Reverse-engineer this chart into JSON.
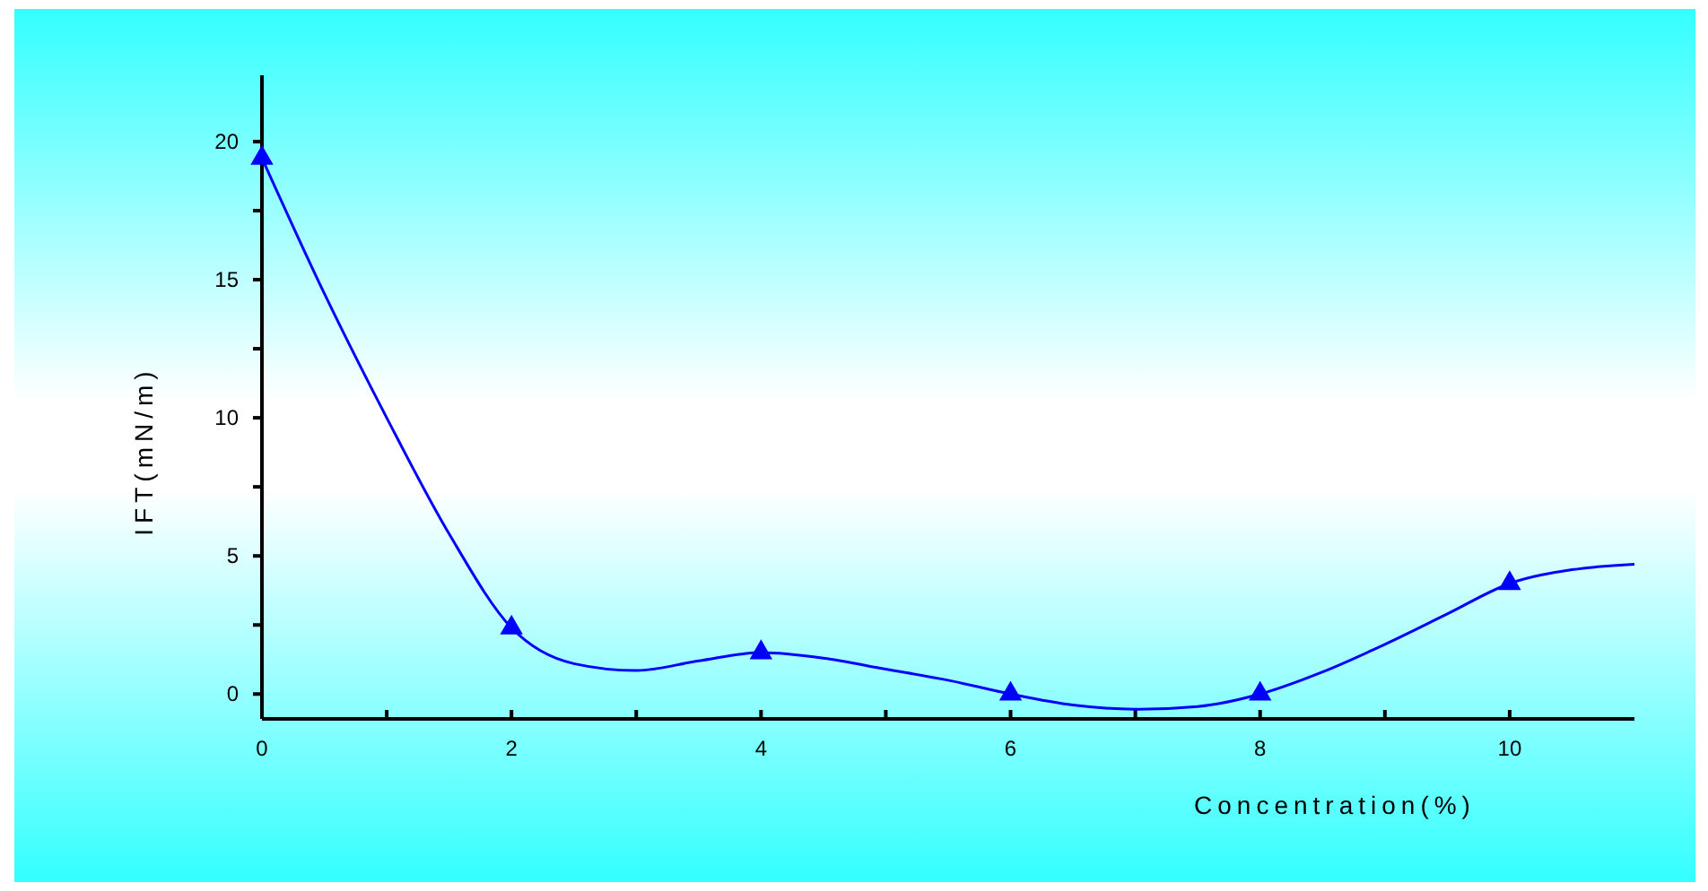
{
  "chart_data": {
    "type": "line",
    "xlabel": "Concentration(%)",
    "ylabel": "IFT(mN/m)",
    "xlim": [
      0,
      11
    ],
    "ylim": [
      -0.9,
      22.4
    ],
    "xticks": [
      0,
      {
        "value": 1,
        "label": null
      },
      2,
      {
        "value": 3,
        "label": null
      },
      4,
      {
        "value": 5,
        "label": null
      },
      6,
      {
        "value": 7,
        "label": null
      },
      8,
      {
        "value": 9,
        "label": null
      },
      10
    ],
    "yticks": [
      0,
      {
        "value": 2.5,
        "label": null
      },
      5,
      {
        "value": 7.5,
        "label": null
      },
      10,
      {
        "value": 12.5,
        "label": null
      },
      15,
      {
        "value": 17.5,
        "label": null
      },
      20
    ],
    "grid": false,
    "series": [
      {
        "color": "#0000ff",
        "marker": "none",
        "x": [
          0,
          0.5,
          1,
          1.5,
          2,
          2.5,
          3,
          3.5,
          4,
          4.5,
          5,
          5.5,
          6,
          6.5,
          7,
          7.5,
          8,
          8.5,
          9,
          9.5,
          10,
          10.5,
          11
        ],
        "values": [
          19.4,
          14.5,
          10,
          5.8,
          2.4,
          1.1,
          0.85,
          1.2,
          1.5,
          1.3,
          0.9,
          0.5,
          0,
          -0.4,
          -0.55,
          -0.45,
          0,
          0.8,
          1.8,
          2.9,
          4,
          4.5,
          4.7
        ]
      },
      {
        "type": "scatter",
        "color": "#0000ff",
        "marker": "triangle",
        "x": [
          0,
          2,
          4,
          6,
          8,
          10
        ],
        "values": [
          19.4,
          2.4,
          1.5,
          0,
          0,
          4
        ]
      }
    ]
  }
}
